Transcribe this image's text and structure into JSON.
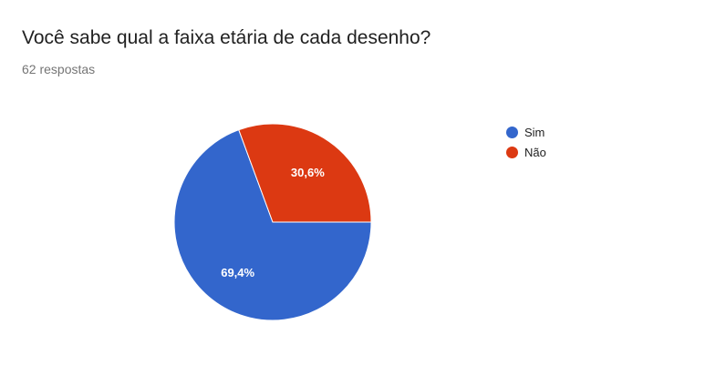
{
  "header": {
    "title": "Você sabe qual a faixa etária de cada desenho?",
    "response_count": "62 respostas"
  },
  "chart_data": {
    "type": "pie",
    "title": "Você sabe qual a faixa etária de cada desenho?",
    "slices": [
      {
        "label": "Sim",
        "value": 69.4,
        "display": "69,4%",
        "color": "#3366cc"
      },
      {
        "label": "Não",
        "value": 30.6,
        "display": "30,6%",
        "color": "#dc3912"
      }
    ],
    "legend_position": "right"
  }
}
